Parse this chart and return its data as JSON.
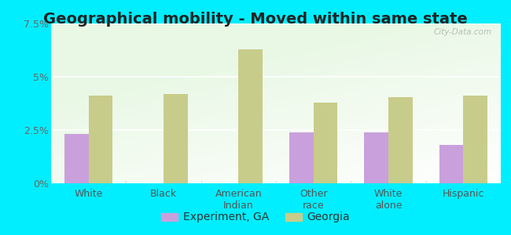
{
  "title": "Geographical mobility - Moved within same state",
  "categories": [
    "White",
    "Black",
    "American\nIndian",
    "Other\nrace",
    "White\nalone",
    "Hispanic"
  ],
  "experiment_values": [
    2.3,
    0.0,
    0.0,
    2.4,
    2.4,
    1.8
  ],
  "georgia_values": [
    4.1,
    4.2,
    6.3,
    3.8,
    4.05,
    4.1
  ],
  "experiment_color": "#c9a0dc",
  "georgia_color": "#c8cc8a",
  "ylim": [
    0,
    7.5
  ],
  "yticks": [
    0,
    2.5,
    5.0,
    7.5
  ],
  "ytick_labels": [
    "0%",
    "2.5%",
    "5%",
    "7.5%"
  ],
  "bar_width": 0.32,
  "outer_background": "#00eeff",
  "legend_label_experiment": "Experiment, GA",
  "legend_label_georgia": "Georgia",
  "title_fontsize": 14,
  "tick_fontsize": 9,
  "legend_fontsize": 10,
  "watermark": "City-Data.com"
}
